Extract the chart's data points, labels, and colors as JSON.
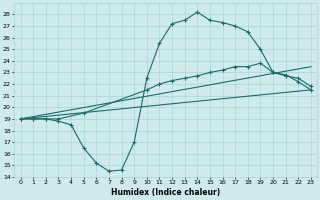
{
  "xlabel": "Humidex (Indice chaleur)",
  "bg_color": "#ceeaea",
  "grid_color": "#aad4d4",
  "line_color": "#1a6b6b",
  "xlim": [
    -0.5,
    23.5
  ],
  "ylim": [
    14,
    29
  ],
  "yticks": [
    14,
    15,
    16,
    17,
    18,
    19,
    20,
    21,
    22,
    23,
    24,
    25,
    26,
    27,
    28
  ],
  "xticks": [
    0,
    1,
    2,
    3,
    4,
    5,
    6,
    7,
    8,
    9,
    10,
    11,
    12,
    13,
    14,
    15,
    16,
    17,
    18,
    19,
    20,
    21,
    22,
    23
  ],
  "curve1_x": [
    0,
    1,
    2,
    3,
    4,
    5,
    6,
    7,
    8,
    9,
    10,
    11,
    12,
    13,
    14,
    15,
    16,
    17,
    18,
    19,
    20,
    21,
    22,
    23
  ],
  "curve1_y": [
    19,
    19,
    19,
    18.8,
    18.5,
    16.5,
    15.2,
    14.5,
    14.6,
    17.0,
    22.5,
    25.5,
    27.2,
    27.5,
    28.2,
    27.5,
    27.3,
    27.0,
    26.5,
    25.0,
    23.0,
    22.8,
    22.2,
    21.5
  ],
  "curve2_x": [
    0,
    1,
    2,
    3,
    5,
    10,
    11,
    12,
    13,
    14,
    15,
    16,
    17,
    18,
    19,
    20,
    21,
    22,
    23
  ],
  "curve2_y": [
    19,
    19,
    19,
    19,
    19.5,
    21.5,
    22.0,
    22.3,
    22.5,
    22.7,
    23.0,
    23.2,
    23.5,
    23.5,
    23.8,
    23.0,
    22.7,
    22.5,
    21.8
  ],
  "curve3_x": [
    0,
    23
  ],
  "curve3_y": [
    19,
    21.5
  ],
  "curve4_x": [
    0,
    23
  ],
  "curve4_y": [
    19,
    23.5
  ]
}
